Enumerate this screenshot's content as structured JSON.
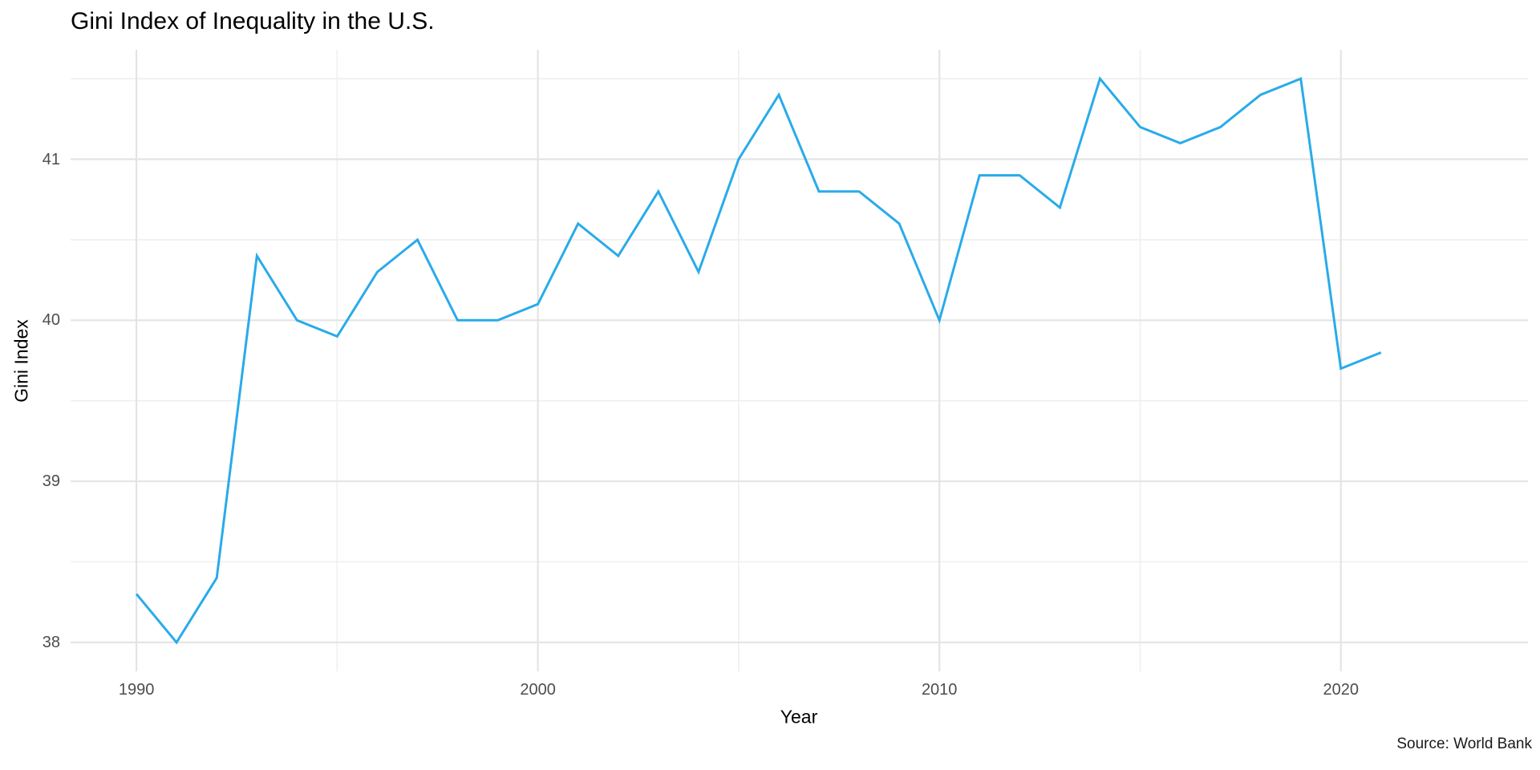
{
  "title": "Gini Index of Inequality in the U.S.",
  "caption": "Source: World Bank",
  "colors": {
    "background": "#ffffff",
    "line": "#29abe9",
    "grid_major": "#e4e4e4",
    "grid_minor": "#efefef",
    "tick_label": "#4d4d4d",
    "text": "#000000"
  },
  "chart_data": {
    "type": "line",
    "title": "Gini Index of Inequality in the U.S.",
    "xlabel": "Year",
    "ylabel": "Gini Index",
    "caption": "Source: World Bank",
    "grid": true,
    "legend": false,
    "x": [
      1990,
      1991,
      1992,
      1993,
      1994,
      1995,
      1996,
      1997,
      1998,
      1999,
      2000,
      2001,
      2002,
      2003,
      2004,
      2005,
      2006,
      2007,
      2008,
      2009,
      2010,
      2011,
      2012,
      2013,
      2014,
      2015,
      2016,
      2017,
      2018,
      2019,
      2020,
      2021
    ],
    "series": [
      {
        "name": "Gini Index",
        "values": [
          38.3,
          38.0,
          38.4,
          40.4,
          40.0,
          39.9,
          40.3,
          40.5,
          40.0,
          40.0,
          40.1,
          40.6,
          40.4,
          40.8,
          40.3,
          41.0,
          41.4,
          40.8,
          40.8,
          40.6,
          40.0,
          40.9,
          40.9,
          40.7,
          41.5,
          41.2,
          41.1,
          41.2,
          41.4,
          41.5,
          39.7,
          39.8
        ]
      }
    ],
    "x_domain": [
      1988.36,
      2024.66
    ],
    "y_domain": [
      37.82,
      41.68
    ],
    "x_major_ticks": [
      1990,
      2000,
      2010,
      2020
    ],
    "x_minor_ticks": [
      1995,
      2005,
      2015
    ],
    "x_tick_labels": [
      "1990",
      "2000",
      "2010",
      "2020"
    ],
    "y_major_ticks": [
      38,
      39,
      40,
      41
    ],
    "y_minor_ticks": [
      38.5,
      39.5,
      40.5,
      41.5
    ],
    "y_tick_labels": [
      "38",
      "39",
      "40",
      "41"
    ]
  }
}
